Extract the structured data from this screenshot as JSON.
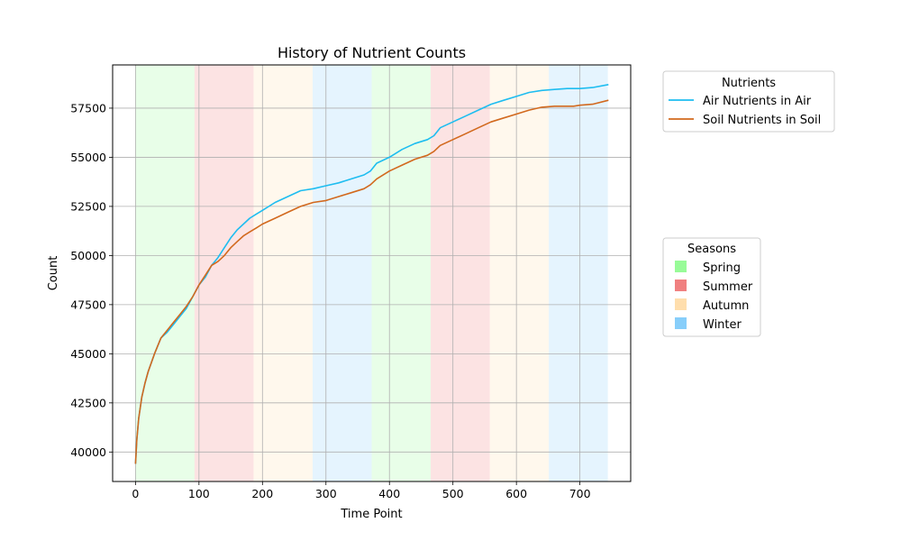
{
  "chart_data": {
    "type": "line",
    "title": "History of Nutrient Counts",
    "xlabel": "Time Point",
    "ylabel": "Count",
    "xlim": [
      -36,
      780
    ],
    "ylim": [
      38500,
      59700
    ],
    "xticks": [
      0,
      100,
      200,
      300,
      400,
      500,
      600,
      700
    ],
    "yticks": [
      40000,
      42500,
      45000,
      47500,
      50000,
      52500,
      55000,
      57500
    ],
    "grid": true,
    "legends": [
      {
        "title": "Nutrients",
        "placement": "top-right-outside",
        "entries": [
          "Air Nutrients in Air",
          "Soil Nutrients in Soil"
        ]
      },
      {
        "title": "Seasons",
        "placement": "right-outside",
        "entries": [
          "Spring",
          "Summer",
          "Autumn",
          "Winter"
        ]
      }
    ],
    "seasons": [
      {
        "name": "Spring",
        "start": 0,
        "end": 93
      },
      {
        "name": "Summer",
        "start": 93,
        "end": 186
      },
      {
        "name": "Autumn",
        "start": 186,
        "end": 279
      },
      {
        "name": "Winter",
        "start": 279,
        "end": 372
      },
      {
        "name": "Spring",
        "start": 372,
        "end": 465
      },
      {
        "name": "Summer",
        "start": 465,
        "end": 558
      },
      {
        "name": "Autumn",
        "start": 558,
        "end": 651
      },
      {
        "name": "Winter",
        "start": 651,
        "end": 744
      }
    ],
    "season_colors": {
      "Spring": "#98fb98",
      "Summer": "#f08080",
      "Autumn": "#ffdead",
      "Winter": "#87cefa"
    },
    "season_alpha": 0.22,
    "series": [
      {
        "name": "Air Nutrients in Air",
        "color": "#1ebdf0",
        "x": [
          0,
          2,
          5,
          10,
          15,
          20,
          30,
          40,
          50,
          60,
          70,
          80,
          90,
          100,
          110,
          120,
          130,
          140,
          150,
          160,
          170,
          180,
          190,
          200,
          220,
          240,
          260,
          280,
          300,
          320,
          340,
          360,
          370,
          380,
          400,
          420,
          440,
          460,
          470,
          480,
          500,
          520,
          540,
          560,
          580,
          600,
          620,
          640,
          660,
          680,
          690,
          700,
          720,
          745
        ],
        "y": [
          39400,
          40600,
          41700,
          42800,
          43500,
          44100,
          45000,
          45800,
          46100,
          46500,
          46900,
          47300,
          47900,
          48500,
          48900,
          49500,
          49900,
          50400,
          50900,
          51300,
          51600,
          51900,
          52100,
          52300,
          52700,
          53000,
          53300,
          53400,
          53550,
          53700,
          53900,
          54100,
          54300,
          54700,
          55000,
          55400,
          55700,
          55900,
          56100,
          56500,
          56800,
          57100,
          57400,
          57700,
          57900,
          58100,
          58300,
          58400,
          58450,
          58500,
          58500,
          58500,
          58550,
          58700
        ]
      },
      {
        "name": "Soil Nutrients in Soil",
        "color": "#d2691e",
        "x": [
          0,
          2,
          5,
          10,
          15,
          20,
          30,
          40,
          50,
          60,
          70,
          80,
          90,
          100,
          110,
          120,
          130,
          140,
          150,
          160,
          170,
          180,
          190,
          200,
          220,
          240,
          260,
          280,
          300,
          320,
          340,
          360,
          370,
          380,
          400,
          420,
          440,
          460,
          470,
          480,
          500,
          520,
          540,
          560,
          580,
          600,
          620,
          640,
          660,
          680,
          690,
          700,
          720,
          745
        ],
        "y": [
          39400,
          40600,
          41700,
          42800,
          43500,
          44100,
          45000,
          45800,
          46200,
          46600,
          47000,
          47400,
          47900,
          48500,
          49000,
          49500,
          49700,
          50000,
          50400,
          50700,
          51000,
          51200,
          51400,
          51600,
          51900,
          52200,
          52500,
          52700,
          52800,
          53000,
          53200,
          53400,
          53600,
          53900,
          54300,
          54600,
          54900,
          55100,
          55300,
          55600,
          55900,
          56200,
          56500,
          56800,
          57000,
          57200,
          57400,
          57550,
          57600,
          57600,
          57600,
          57650,
          57700,
          57900
        ]
      }
    ]
  }
}
